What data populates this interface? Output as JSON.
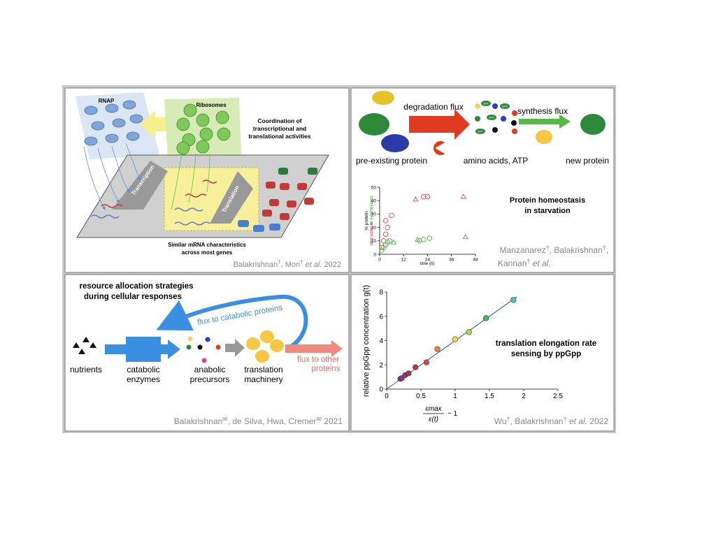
{
  "transcription_panel": {
    "rnap": "RNAP",
    "ribosomes": "Ribosomes",
    "coordination": [
      "Coordination of",
      "transcriptional and",
      "translational activities"
    ],
    "transcription": "Transcription",
    "translation": "Translation",
    "mrna": [
      "Similar mRNA characteristics",
      "across most genes"
    ],
    "citation": [
      "Balakrishnan",
      "†",
      ", Mori",
      "†",
      " et al.",
      " 2022"
    ]
  },
  "homeostasis_panel": {
    "degradation_flux": "degradation flux",
    "synthesis_flux": "synthesis flux",
    "atp": "ATP",
    "pre_existing": "pre-existing protein",
    "amino_acids": "amino acids, ATP",
    "new_protein": "new protein",
    "title": [
      "Protein homeostasis",
      "in starvation"
    ],
    "citation": [
      [
        "Manzanarez",
        "†",
        ", Balakrishnan",
        "†",
        ","
      ],
      [
        "Kannan",
        "†",
        " et al."
      ]
    ],
    "chart": {
      "type": "scatter",
      "x_label": "time (h)",
      "y_label": [
        "% protein",
        "degraded",
        " or ",
        "synthesized"
      ],
      "xlim": [
        0,
        48
      ],
      "xticks": [
        0,
        12,
        24,
        36,
        48
      ],
      "ylim": [
        0,
        50
      ],
      "yticks": [
        0,
        10,
        20,
        30,
        40,
        50
      ],
      "series": [
        {
          "color": "#e04848",
          "marker": "circle",
          "x": [
            1,
            2,
            3,
            4,
            3,
            6,
            22,
            24
          ],
          "y": [
            5,
            10,
            15,
            20,
            25,
            29,
            43,
            43
          ]
        },
        {
          "color": "#e04848",
          "marker": "triangle",
          "x": [
            18,
            42
          ],
          "y": [
            41,
            43
          ]
        },
        {
          "color": "#4caf50",
          "marker": "circle",
          "x": [
            1,
            2,
            3,
            4,
            5,
            20,
            22,
            25
          ],
          "y": [
            3,
            5,
            7,
            9,
            10,
            10,
            11,
            12
          ]
        },
        {
          "color": "#4caf50",
          "marker": "triangle",
          "x": [
            7,
            19,
            43
          ],
          "y": [
            9,
            11,
            13
          ]
        }
      ]
    }
  },
  "allocation_panel": {
    "title": [
      "resource allocation strategies",
      "during cellular responses"
    ],
    "flux_catabolic": "flux to catabolic proteins",
    "nutrients": "nutrients",
    "catabolic": [
      "catabolic",
      "enzymes"
    ],
    "anabolic": [
      "anabolic",
      "precursors"
    ],
    "translation": [
      "translation",
      "machinery"
    ],
    "flux_other": [
      "flux to other",
      "proteins"
    ],
    "citation": [
      "Balakrishnan",
      "✉",
      ", de Silva, Hwa, Cremer",
      "✉",
      " 2021"
    ]
  },
  "ppgpp_panel": {
    "title": [
      "translation elongation rate",
      "sensing by ppGpp"
    ],
    "citation": [
      "Wu",
      "†",
      ", Balakrishnan",
      "†",
      " et al.",
      " 2022"
    ],
    "chart": {
      "type": "scatter",
      "y_label": "relative ppGpp concentration g(t)",
      "x_label": {
        "numerator": "εmax",
        "denominator": "ε(t)",
        "suffix": "− 1"
      },
      "xlim": [
        0,
        2.5
      ],
      "xticks": [
        0,
        0.5,
        1,
        1.5,
        2,
        2.5
      ],
      "ylim": [
        0,
        8
      ],
      "yticks": [
        0,
        2,
        4,
        6,
        8
      ],
      "fit": {
        "color": "#2050c0",
        "x": [
          0,
          1.9
        ],
        "y": [
          0,
          7.6
        ]
      },
      "series": [
        {
          "marker": "circle",
          "colors": [
            "#6a3fb0",
            "#7b3a98",
            "#8a3a70",
            "#9a3a58",
            "#c03a3a",
            "#d84a3a",
            "#e8803a",
            "#f2e040",
            "#a8e040",
            "#40c050",
            "#40d0b0"
          ],
          "x": [
            0.2,
            0.22,
            0.27,
            0.32,
            0.42,
            0.58,
            0.74,
            1.0,
            1.2,
            1.45,
            1.85
          ],
          "y": [
            0.85,
            0.9,
            1.15,
            1.3,
            1.8,
            2.2,
            3.3,
            4.1,
            4.7,
            5.85,
            7.35
          ]
        }
      ]
    }
  }
}
